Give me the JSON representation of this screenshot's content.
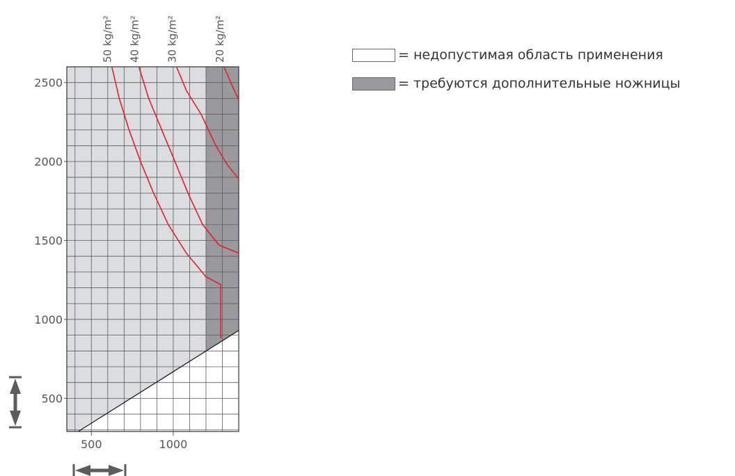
{
  "legend": {
    "invalid_label": "= недопустимая область применения",
    "scissors_label": "= требуются дополнительные ножницы"
  },
  "colors": {
    "valid_fill": "#dcdde0",
    "scissors_fill": "#9a9a9e",
    "invalid_fill": "#ffffff",
    "grid": "#5a5a5a",
    "curve": "#e0202e",
    "arrow": "#5c5c5c"
  },
  "icons": {
    "vertical": "vertical-double-arrow-icon",
    "horizontal": "horizontal-double-arrow-icon"
  },
  "chart_data": {
    "type": "line",
    "title": "",
    "xlabel": "",
    "ylabel": "",
    "xlim": [
      350,
      1400
    ],
    "ylim": [
      290,
      2600
    ],
    "x_ticks": [
      500,
      1000
    ],
    "y_ticks": [
      500,
      1000,
      1500,
      2000,
      2500
    ],
    "grid": true,
    "regions": {
      "invalid_boundary": [
        [
          420,
          290
        ],
        [
          1400,
          930
        ]
      ],
      "scissors_x_start": 1200
    },
    "series": [
      {
        "name": "50 kg/m²",
        "points": [
          [
            625,
            2600
          ],
          [
            670,
            2400
          ],
          [
            730,
            2200
          ],
          [
            800,
            2000
          ],
          [
            880,
            1800
          ],
          [
            970,
            1600
          ],
          [
            1080,
            1420
          ],
          [
            1200,
            1270
          ],
          [
            1290,
            1220
          ],
          [
            1290,
            880
          ]
        ]
      },
      {
        "name": "40 kg/m²",
        "points": [
          [
            790,
            2600
          ],
          [
            850,
            2400
          ],
          [
            930,
            2200
          ],
          [
            1010,
            2000
          ],
          [
            1090,
            1800
          ],
          [
            1180,
            1600
          ],
          [
            1280,
            1470
          ],
          [
            1400,
            1420
          ]
        ]
      },
      {
        "name": "30 kg/m²",
        "points": [
          [
            1020,
            2600
          ],
          [
            1080,
            2450
          ],
          [
            1170,
            2300
          ],
          [
            1260,
            2100
          ],
          [
            1330,
            1980
          ],
          [
            1400,
            1890
          ]
        ]
      },
      {
        "name": "20 kg/m²",
        "points": [
          [
            1310,
            2600
          ],
          [
            1360,
            2480
          ],
          [
            1400,
            2390
          ]
        ]
      }
    ]
  }
}
